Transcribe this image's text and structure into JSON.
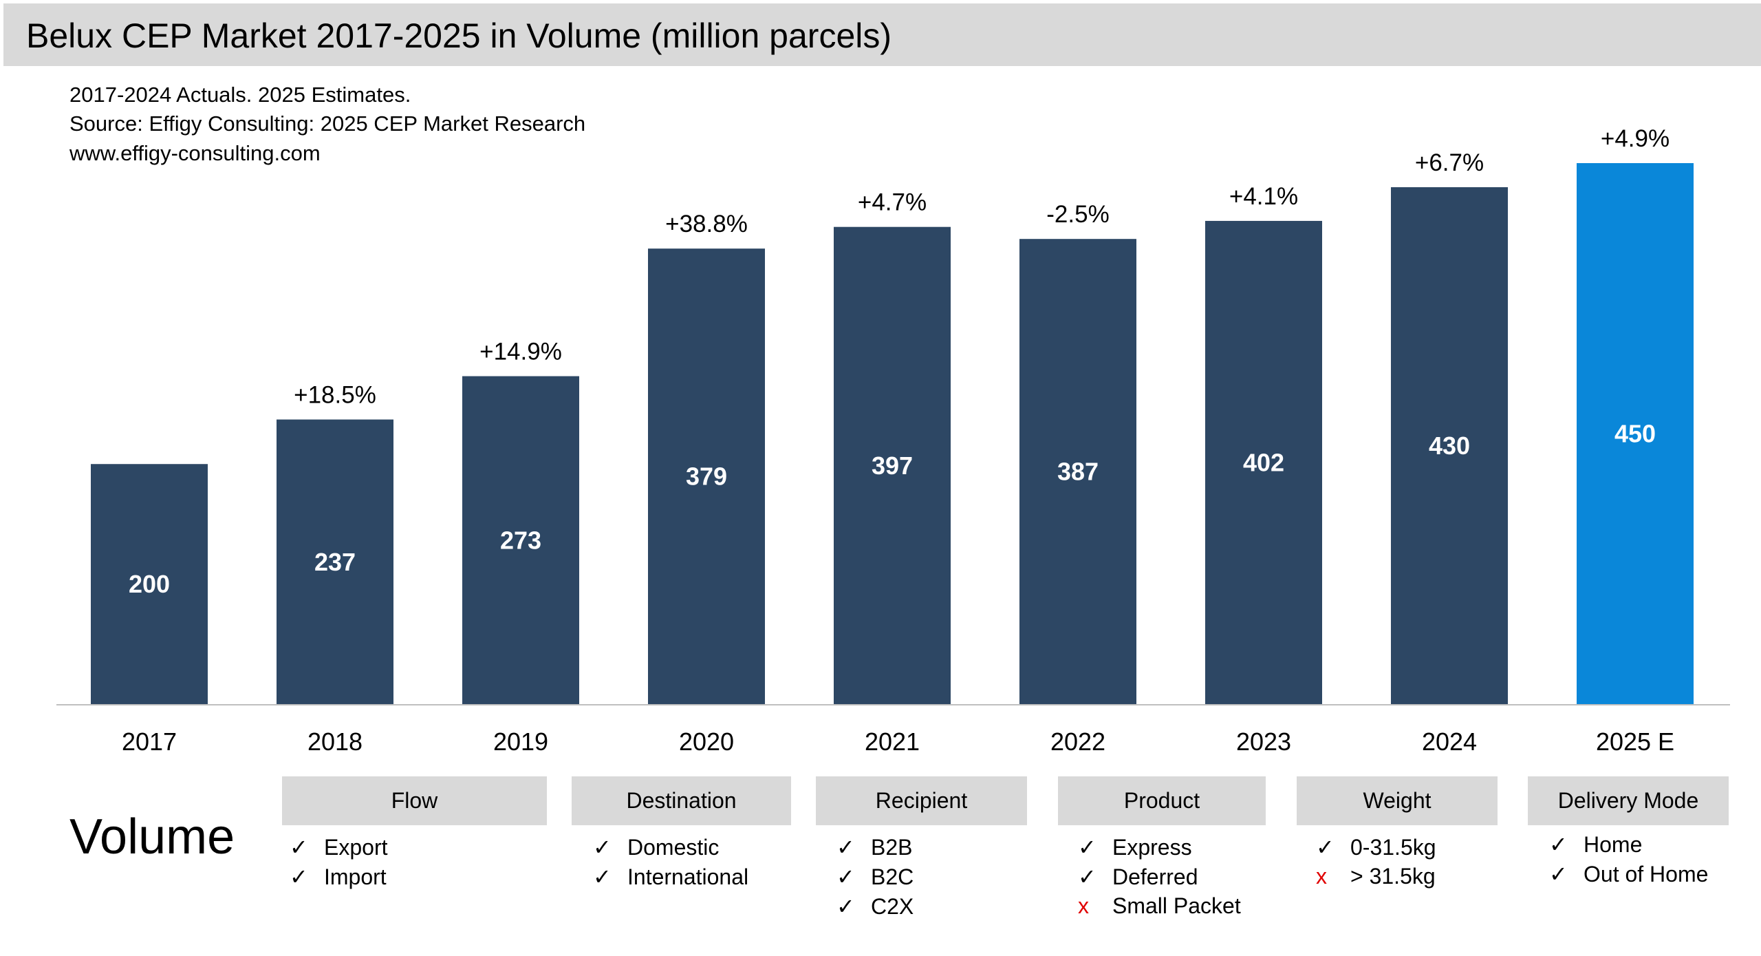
{
  "title": "Belux CEP Market 2017-2025 in Volume (million parcels)",
  "notes": [
    "2017-2024 Actuals. 2025 Estimates.",
    "Source: Effigy Consulting: 2025 CEP Market Research",
    "www.effigy-consulting.com"
  ],
  "chart_data": {
    "type": "bar",
    "categories": [
      "2017",
      "2018",
      "2019",
      "2020",
      "2021",
      "2022",
      "2023",
      "2024",
      "2025 E"
    ],
    "values": [
      200,
      237,
      273,
      379,
      397,
      387,
      402,
      430,
      450
    ],
    "value_labels": [
      "200",
      "237",
      "273",
      "379",
      "397",
      "387",
      "402",
      "430",
      "450"
    ],
    "growth_labels": [
      "",
      "+18.5%",
      "+14.9%",
      "+38.8%",
      "+4.7%",
      "-2.5%",
      "+4.1%",
      "+6.7%",
      "+4.9%"
    ],
    "title": "Belux CEP Market 2017-2025 in Volume (million parcels)",
    "xlabel": "",
    "ylabel": "",
    "ylim": [
      0,
      450
    ],
    "grid": false,
    "colors": {
      "actual": "#2d4764",
      "estimate": "#0a87d9"
    }
  },
  "legend_section": {
    "label": "Volume",
    "categories": [
      {
        "name": "Flow",
        "items": [
          {
            "mark": "✓",
            "text": "Export"
          },
          {
            "mark": "✓",
            "text": "Import"
          }
        ]
      },
      {
        "name": "Destination",
        "items": [
          {
            "mark": "✓",
            "text": "Domestic"
          },
          {
            "mark": "✓",
            "text": "International"
          }
        ]
      },
      {
        "name": "Recipient",
        "items": [
          {
            "mark": "✓",
            "text": "B2B"
          },
          {
            "mark": "✓",
            "text": "B2C"
          },
          {
            "mark": "✓",
            "text": "C2X"
          }
        ]
      },
      {
        "name": "Product",
        "items": [
          {
            "mark": "✓",
            "text": "Express"
          },
          {
            "mark": "✓",
            "text": "Deferred"
          },
          {
            "mark": "x",
            "text": "Small Packet"
          }
        ]
      },
      {
        "name": "Weight",
        "items": [
          {
            "mark": "✓",
            "text": "0-31.5kg"
          },
          {
            "mark": "x",
            "text": "> 31.5kg"
          }
        ]
      },
      {
        "name": "Delivery Mode",
        "items": [
          {
            "mark": "✓",
            "text": "Home"
          },
          {
            "mark": "✓",
            "text": "Out of Home"
          }
        ]
      }
    ]
  }
}
